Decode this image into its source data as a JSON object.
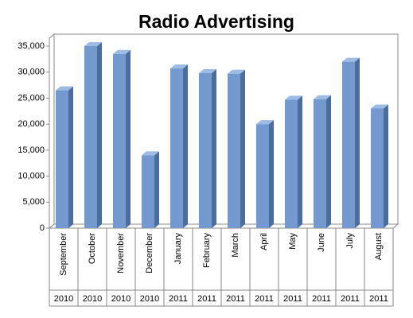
{
  "chart_data": {
    "type": "bar",
    "title": "Radio Advertising",
    "categories": [
      "September",
      "October",
      "November",
      "December",
      "January",
      "February",
      "March",
      "April",
      "May",
      "June",
      "July",
      "August"
    ],
    "years": [
      "2010",
      "2010",
      "2010",
      "2010",
      "2011",
      "2011",
      "2011",
      "2011",
      "2011",
      "2011",
      "2011",
      "2011"
    ],
    "values": [
      26500,
      35000,
      33500,
      14000,
      30700,
      29800,
      29700,
      20000,
      24700,
      24800,
      32000,
      23000
    ],
    "color": "#7399cf",
    "ylim": [
      0,
      35000
    ],
    "yticks": [
      0,
      {
        "value": 5000,
        "label": "5,000"
      },
      {
        "value": 10000,
        "label": "10,000"
      },
      {
        "value": 15000,
        "label": "15,000"
      },
      {
        "value": 20000,
        "label": "20,000"
      },
      {
        "value": 25000,
        "label": "25,000"
      },
      {
        "value": 30000,
        "label": "30,000"
      },
      {
        "value": 35000,
        "label": "35,000"
      }
    ],
    "grid": false
  }
}
